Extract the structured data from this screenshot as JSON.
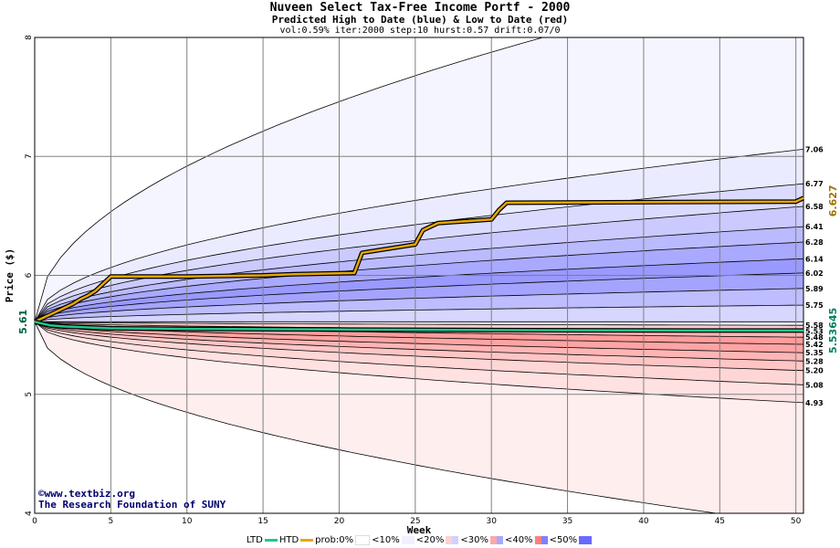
{
  "header": {
    "title": "Nuveen Select Tax-Free Income Portf - 2000",
    "subtitle": "Predicted High to Date (blue) &  Low to Date (red)",
    "params": "vol:0.59% iter:2000 step:10 hurst:0.57 drift:0.07/0"
  },
  "credits": {
    "line1": "©www.textbiz.org",
    "line2": "The Research Foundation of SUNY"
  },
  "legend": {
    "ltd": "LTD",
    "htd": "HTD",
    "prob": "prob:0%",
    "lt10": "<10%",
    "lt20": "<20%",
    "lt30": "<30%",
    "lt40": "<40%",
    "lt50": "<50%"
  },
  "colors": {
    "htd_line": "#e8a800",
    "ltd_line": "#20c890",
    "blue_band": "#5a5aff",
    "red_band": "#ff5a5a",
    "grid": "#808080",
    "start_label": "#006040",
    "htd_label": "#a07000",
    "ltd_label": "#008060"
  },
  "chart_data": {
    "type": "line",
    "title": "Nuveen Select Tax-Free Income Portf - 2000",
    "subtitle": "Predicted High to Date (blue) &  Low to Date (red)",
    "xlabel": "Week",
    "ylabel": "Price ($)",
    "xlim": [
      0,
      50.5
    ],
    "ylim": [
      4,
      8
    ],
    "x_ticks": [
      0,
      5,
      10,
      15,
      20,
      25,
      30,
      35,
      40,
      45,
      50
    ],
    "y_ticks": [
      4,
      5,
      6,
      7,
      8
    ],
    "grid": true,
    "start_value": "5.61",
    "htd_end_label": "6.627",
    "ltd_end_label": "5.53645",
    "band_end_labels": [
      "7.06",
      "6.77",
      "6.58",
      "6.41",
      "6.28",
      "6.14",
      "6.02",
      "5.89",
      "5.75",
      "5.58",
      "5.53",
      "5.48",
      "5.42",
      "5.35",
      "5.28",
      "5.20",
      "5.08",
      "4.93"
    ],
    "blue_quantiles": [
      {
        "start": 5.61,
        "end": 8.55
      },
      {
        "start": 5.61,
        "end": 7.06
      },
      {
        "start": 5.61,
        "end": 6.77
      },
      {
        "start": 5.61,
        "end": 6.58
      },
      {
        "start": 5.61,
        "end": 6.41
      },
      {
        "start": 5.61,
        "end": 6.28
      },
      {
        "start": 5.61,
        "end": 6.14
      },
      {
        "start": 5.61,
        "end": 6.02
      },
      {
        "start": 5.61,
        "end": 5.89
      },
      {
        "start": 5.61,
        "end": 5.75
      },
      {
        "start": 5.61,
        "end": 5.61
      }
    ],
    "blue_fill_alpha": [
      0.06,
      0.12,
      0.22,
      0.32,
      0.42,
      0.52,
      0.62,
      0.55,
      0.4,
      0.25,
      0.1
    ],
    "red_quantiles": [
      {
        "start": 5.61,
        "end": 5.58
      },
      {
        "start": 5.61,
        "end": 5.53
      },
      {
        "start": 5.61,
        "end": 5.48
      },
      {
        "start": 5.61,
        "end": 5.42
      },
      {
        "start": 5.61,
        "end": 5.35
      },
      {
        "start": 5.61,
        "end": 5.28
      },
      {
        "start": 5.61,
        "end": 5.2
      },
      {
        "start": 5.61,
        "end": 5.08
      },
      {
        "start": 5.61,
        "end": 4.93
      },
      {
        "start": 5.61,
        "end": 3.9
      }
    ],
    "red_fill_alpha": [
      0.3,
      0.45,
      0.6,
      0.55,
      0.45,
      0.35,
      0.25,
      0.18,
      0.1
    ],
    "series": [
      {
        "name": "HTD",
        "x": [
          0,
          0.5,
          1,
          1.5,
          2,
          2.5,
          3,
          3.5,
          4,
          4.5,
          5,
          10,
          15,
          17,
          21,
          21.5,
          25,
          25.5,
          26.5,
          30,
          30.5,
          31,
          50,
          50.5
        ],
        "y": [
          5.61,
          5.64,
          5.67,
          5.7,
          5.73,
          5.76,
          5.8,
          5.83,
          5.87,
          5.93,
          5.99,
          5.99,
          6.0,
          6.01,
          6.02,
          6.19,
          6.26,
          6.38,
          6.44,
          6.47,
          6.55,
          6.61,
          6.62,
          6.65
        ]
      },
      {
        "name": "LTD",
        "x": [
          0,
          1,
          2,
          5,
          10,
          20,
          30,
          40,
          50.5
        ],
        "y": [
          5.61,
          5.58,
          5.57,
          5.555,
          5.55,
          5.545,
          5.54,
          5.537,
          5.536
        ]
      }
    ]
  }
}
